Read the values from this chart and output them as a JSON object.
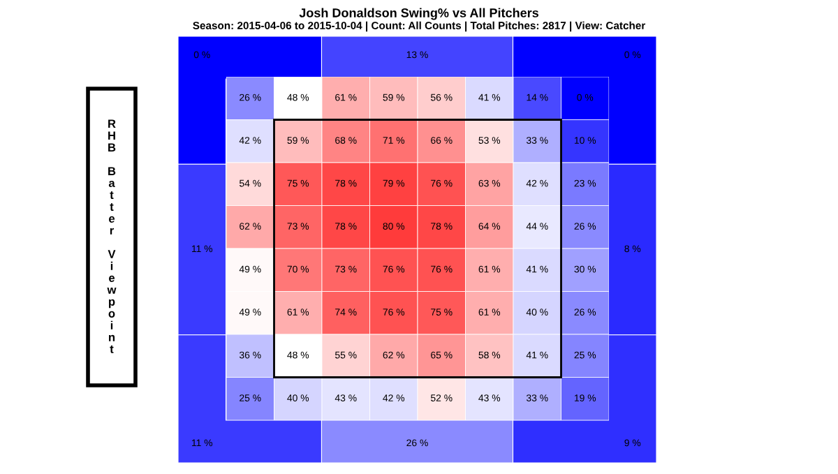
{
  "chart_data": [
    {
      "type": "other",
      "title": "Josh Donaldson Swing% vs All Pitchers",
      "subtitle": "Season: 2015-04-06 to 2015-10-04 | Count: All Counts | Total Pitches: 2817 | View: Catcher",
      "categories": [
        null,
        null,
        null,
        null,
        null,
        null,
        null,
        null
      ],
      "values": [
        0,
        13,
        0,
        11,
        8,
        11,
        26,
        9
      ],
      "value_labels": [
        "0 %",
        "13 %",
        "0 %",
        "11 %",
        "8 %",
        "11 %",
        "26 %",
        "9 %"
      ],
      "annotations": [
        "RHB Batter Viewpoint"
      ]
    },
    {
      "type": "heatmap",
      "categories": [
        null,
        null,
        null,
        null,
        null,
        null,
        null,
        null
      ],
      "y_categories": [
        null,
        null,
        null,
        null,
        null,
        null,
        null,
        null
      ],
      "cells": [
        [
          26,
          48,
          61,
          59,
          56,
          41,
          14,
          0
        ],
        [
          42,
          59,
          68,
          71,
          66,
          53,
          33,
          10
        ],
        [
          54,
          75,
          78,
          79,
          76,
          63,
          42,
          23
        ],
        [
          62,
          73,
          78,
          80,
          78,
          64,
          44,
          26
        ],
        [
          49,
          70,
          73,
          76,
          76,
          61,
          41,
          30
        ],
        [
          49,
          61,
          74,
          76,
          75,
          61,
          40,
          26
        ],
        [
          36,
          48,
          55,
          62,
          65,
          58,
          41,
          25
        ],
        [
          25,
          40,
          43,
          42,
          52,
          43,
          33,
          19
        ]
      ],
      "cell_labels": [
        [
          "26 %",
          "48 %",
          "61 %",
          "59 %",
          "56 %",
          "41 %",
          "14 %",
          "0 %"
        ],
        [
          "42 %",
          "59 %",
          "68 %",
          "71 %",
          "66 %",
          "53 %",
          "33 %",
          "10 %"
        ],
        [
          "54 %",
          "75 %",
          "78 %",
          "79 %",
          "76 %",
          "63 %",
          "42 %",
          "23 %"
        ],
        [
          "62 %",
          "73 %",
          "78 %",
          "80 %",
          "78 %",
          "64 %",
          "44 %",
          "26 %"
        ],
        [
          "49 %",
          "70 %",
          "73 %",
          "76 %",
          "76 %",
          "61 %",
          "41 %",
          "30 %"
        ],
        [
          "49 %",
          "61 %",
          "74 %",
          "76 %",
          "75 %",
          "61 %",
          "40 %",
          "26 %"
        ],
        [
          "36 %",
          "48 %",
          "55 %",
          "62 %",
          "65 %",
          "58 %",
          "41 %",
          "25 %"
        ],
        [
          "25 %",
          "40 %",
          "43 %",
          "42 %",
          "52 %",
          "43 %",
          "33 %",
          "19 %"
        ]
      ]
    }
  ]
}
